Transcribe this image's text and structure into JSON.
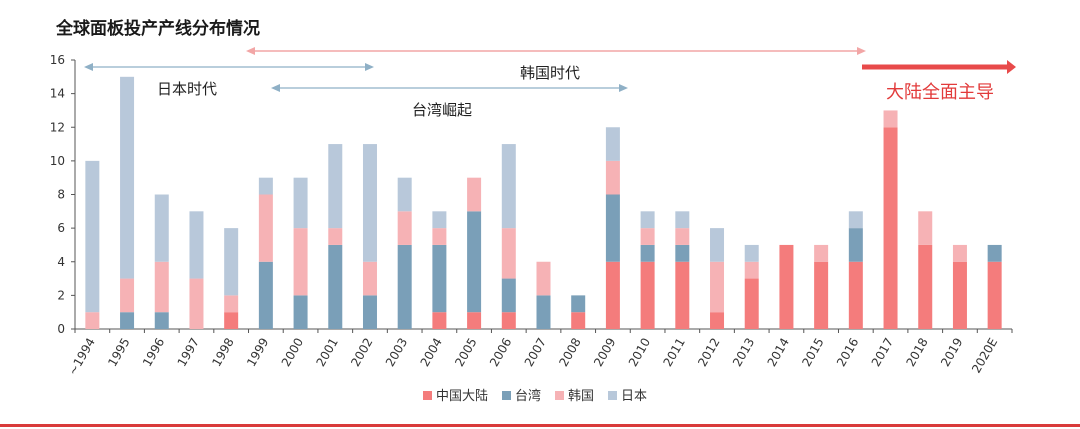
{
  "colors": {
    "mainland": "#f47c7c",
    "taiwan": "#7a9fb8",
    "korea": "#f6b2b5",
    "japan": "#b8c8da",
    "arrow_gray": "#8fb0c6",
    "arrow_pink": "#f2a6a6",
    "arrow_red": "#e84a4a",
    "text_red": "#e23b3b"
  },
  "chart_data": {
    "type": "bar",
    "stacked": true,
    "title": "全球面板投产产线分布情况",
    "categories": [
      "~1994",
      "1995",
      "1996",
      "1997",
      "1998",
      "1999",
      "2000",
      "2001",
      "2002",
      "2003",
      "2004",
      "2005",
      "2006",
      "2007",
      "2008",
      "2009",
      "2010",
      "2011",
      "2012",
      "2013",
      "2014",
      "2015",
      "2016",
      "2017",
      "2018",
      "2019",
      "2020E"
    ],
    "series": [
      {
        "name": "中国大陆",
        "color_key": "mainland",
        "values": [
          0,
          0,
          0,
          0,
          1,
          0,
          0,
          0,
          0,
          0,
          1,
          1,
          1,
          0,
          1,
          4,
          4,
          4,
          1,
          3,
          5,
          4,
          4,
          12,
          5,
          4,
          4
        ]
      },
      {
        "name": "台湾",
        "color_key": "taiwan",
        "values": [
          0,
          1,
          1,
          0,
          0,
          4,
          2,
          5,
          2,
          5,
          4,
          6,
          2,
          2,
          1,
          4,
          1,
          1,
          0,
          0,
          0,
          0,
          2,
          0,
          0,
          0,
          1
        ]
      },
      {
        "name": "韩国",
        "color_key": "korea",
        "values": [
          1,
          2,
          3,
          3,
          1,
          4,
          4,
          1,
          2,
          2,
          1,
          2,
          3,
          2,
          0,
          2,
          1,
          1,
          3,
          1,
          0,
          1,
          0,
          1,
          2,
          1,
          0
        ]
      },
      {
        "name": "日本",
        "color_key": "japan",
        "values": [
          9,
          12,
          4,
          4,
          4,
          1,
          3,
          5,
          7,
          2,
          1,
          0,
          5,
          0,
          0,
          2,
          1,
          1,
          2,
          1,
          0,
          0,
          1,
          0,
          0,
          0,
          0
        ]
      }
    ],
    "ylim": [
      0,
      16
    ],
    "yticks": [
      "0",
      "2",
      "4",
      "6",
      "8",
      "10",
      "12",
      "14",
      "16"
    ],
    "grid": false,
    "legend": "bottom",
    "annotations": [
      {
        "label": "日本时代",
        "from": "~1994",
        "to": "2002",
        "style": "gray"
      },
      {
        "label": "韩国时代",
        "from": "1999",
        "to": "2016",
        "style": "pink"
      },
      {
        "label": "台湾崛起",
        "from": "1999",
        "to": "2009",
        "style": "gray"
      },
      {
        "label": "大陆全面主导",
        "from": "2016",
        "to": "2020E",
        "style": "red"
      }
    ]
  }
}
